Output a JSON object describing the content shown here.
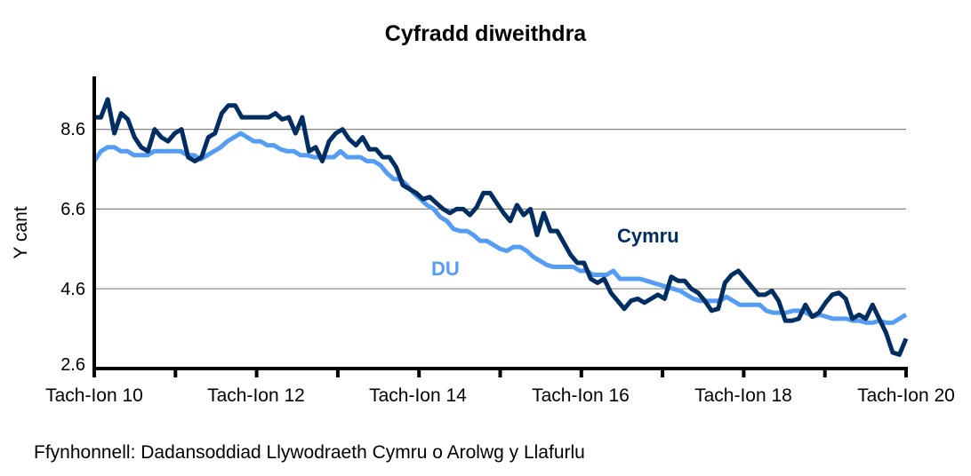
{
  "chart_data": {
    "type": "line",
    "title": "Cyfradd diweithdra",
    "xlabel": "",
    "ylabel": "Y cant",
    "ylim": [
      2.6,
      9.6
    ],
    "yticks": [
      2.6,
      4.6,
      6.6,
      8.6
    ],
    "ytick_labels": [
      "2.6",
      "4.6",
      "6.6",
      "8.6"
    ],
    "xtick_labels": [
      "Tach-Ion 10",
      "Tach-Ion 12",
      "Tach-Ion 14",
      "Tach-Ion 16",
      "Tach-Ion 18",
      "Tach-Ion 20"
    ],
    "grid": "horizontal",
    "legend": "inline labels",
    "series": [
      {
        "name": "Cymru",
        "color": "#002D62",
        "values": [
          8.9,
          8.9,
          9.35,
          8.5,
          9.0,
          8.85,
          8.4,
          8.15,
          8.05,
          8.6,
          8.4,
          8.3,
          8.5,
          8.6,
          7.9,
          7.8,
          7.9,
          8.4,
          8.5,
          9.0,
          9.2,
          9.2,
          8.9,
          8.9,
          8.9,
          8.9,
          8.9,
          9.0,
          8.85,
          8.9,
          8.5,
          8.9,
          8.05,
          8.15,
          7.8,
          8.3,
          8.5,
          8.6,
          8.35,
          8.2,
          8.4,
          8.1,
          8.1,
          7.9,
          7.9,
          7.65,
          7.2,
          7.1,
          7.0,
          6.85,
          6.9,
          6.75,
          6.6,
          6.5,
          6.6,
          6.6,
          6.45,
          6.65,
          7.0,
          7.0,
          6.75,
          6.5,
          6.3,
          6.7,
          6.45,
          6.6,
          5.95,
          6.5,
          6.05,
          6.05,
          5.75,
          5.45,
          5.25,
          5.25,
          4.85,
          4.75,
          4.85,
          4.5,
          4.3,
          4.1,
          4.3,
          4.35,
          4.25,
          4.35,
          4.45,
          4.35,
          4.9,
          4.8,
          4.8,
          4.6,
          4.5,
          4.3,
          4.05,
          4.1,
          4.75,
          4.95,
          5.05,
          4.85,
          4.65,
          4.45,
          4.45,
          4.55,
          4.3,
          3.8,
          3.8,
          3.85,
          4.2,
          3.9,
          4.0,
          4.25,
          4.45,
          4.5,
          4.35,
          3.85,
          3.95,
          3.85,
          4.2,
          3.85,
          3.5,
          3.0,
          2.95,
          3.35
        ]
      },
      {
        "name": "DU",
        "color": "#559DF4",
        "values": [
          7.8,
          8.05,
          8.15,
          8.15,
          8.05,
          8.05,
          7.95,
          7.95,
          7.95,
          8.05,
          8.05,
          8.05,
          8.05,
          8.05,
          7.95,
          7.95,
          7.85,
          7.95,
          8.05,
          8.15,
          8.3,
          8.4,
          8.5,
          8.4,
          8.3,
          8.3,
          8.2,
          8.2,
          8.1,
          8.05,
          8.05,
          7.95,
          7.95,
          7.9,
          7.9,
          7.9,
          7.9,
          8.05,
          7.9,
          7.9,
          7.9,
          7.8,
          7.8,
          7.7,
          7.5,
          7.35,
          7.35,
          7.2,
          7.0,
          6.85,
          6.7,
          6.6,
          6.4,
          6.3,
          6.1,
          6.05,
          6.05,
          5.95,
          5.8,
          5.8,
          5.7,
          5.6,
          5.55,
          5.65,
          5.65,
          5.55,
          5.4,
          5.3,
          5.2,
          5.15,
          5.15,
          5.15,
          5.15,
          5.05,
          5.05,
          4.95,
          4.95,
          4.95,
          5.05,
          4.85,
          4.85,
          4.85,
          4.85,
          4.8,
          4.75,
          4.7,
          4.65,
          4.6,
          4.55,
          4.45,
          4.35,
          4.3,
          4.3,
          4.3,
          4.3,
          4.4,
          4.3,
          4.2,
          4.2,
          4.2,
          4.2,
          4.05,
          4.0,
          4.0,
          4.0,
          4.05,
          4.05,
          4.0,
          3.9,
          3.95,
          3.9,
          3.85,
          3.85,
          3.85,
          3.8,
          3.8,
          3.75,
          3.75,
          3.8,
          3.75,
          3.75,
          3.85,
          3.95
        ]
      }
    ]
  },
  "labels": {
    "title": "Cyfradd diweithdra",
    "ylabel": "Y cant",
    "series_cymru": "Cymru",
    "series_du": "DU",
    "source": "Ffynhonnell: Dadansoddiad Llywodraeth Cymru o Arolwg y Llafurlu"
  }
}
